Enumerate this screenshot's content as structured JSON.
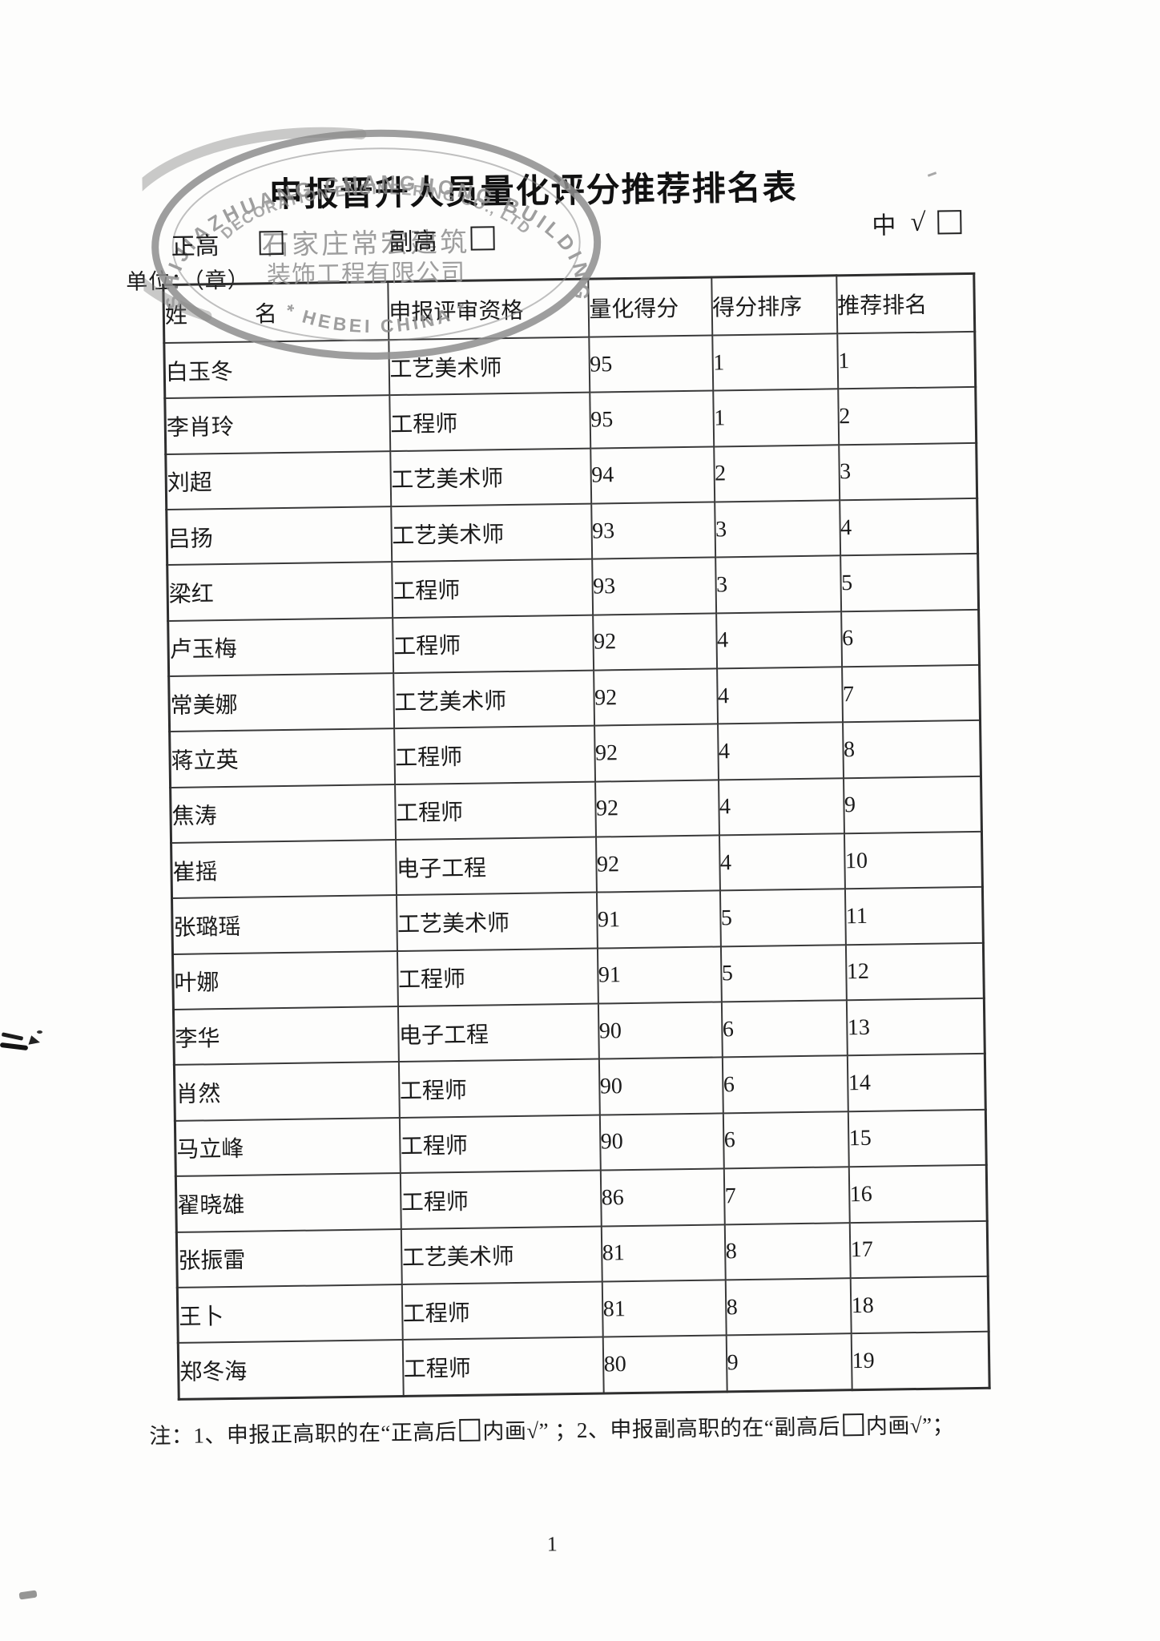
{
  "title": "申报晋升人员量化评分推荐排名表",
  "grade_options": [
    {
      "label": "正高",
      "checked": false
    },
    {
      "label": "副高",
      "checked": false
    },
    {
      "label": "中",
      "checked": true,
      "check_glyph": "√"
    }
  ],
  "unit_label": "单位：（章）",
  "stamp": {
    "color": "#8e8e8e",
    "arc_outer": "SHIJIAZHUANG CHANGHONG BUILDING",
    "arc_inner": "DECORATION ENGINEERING CO., LTD",
    "arc_bottom": "* HEBEI CHINA *",
    "center_line1": "石家庄常宏建筑",
    "center_line2": "装饰工程有限公司"
  },
  "table": {
    "headers": [
      "姓　　　名",
      "申报评审资格",
      "量化得分",
      "得分排序",
      "推荐排名"
    ],
    "rows": [
      {
        "name": "白玉冬",
        "qualification": "工艺美术师",
        "score": "95",
        "score_rank": "1",
        "rec_rank": "1"
      },
      {
        "name": "李肖玲",
        "qualification": "工程师",
        "score": "95",
        "score_rank": "1",
        "rec_rank": "2"
      },
      {
        "name": "刘超",
        "qualification": "工艺美术师",
        "score": "94",
        "score_rank": "2",
        "rec_rank": "3"
      },
      {
        "name": "吕扬",
        "qualification": "工艺美术师",
        "score": "93",
        "score_rank": "3",
        "rec_rank": "4"
      },
      {
        "name": "梁红",
        "qualification": "工程师",
        "score": "93",
        "score_rank": "3",
        "rec_rank": "5"
      },
      {
        "name": "卢玉梅",
        "qualification": "工程师",
        "score": "92",
        "score_rank": "4",
        "rec_rank": "6"
      },
      {
        "name": "常美娜",
        "qualification": "工艺美术师",
        "score": "92",
        "score_rank": "4",
        "rec_rank": "7"
      },
      {
        "name": "蒋立英",
        "qualification": "工程师",
        "score": "92",
        "score_rank": "4",
        "rec_rank": "8"
      },
      {
        "name": "焦涛",
        "qualification": "工程师",
        "score": "92",
        "score_rank": "4",
        "rec_rank": "9"
      },
      {
        "name": "崔摇",
        "qualification": "电子工程",
        "score": "92",
        "score_rank": "4",
        "rec_rank": "10"
      },
      {
        "name": "张璐瑶",
        "qualification": "工艺美术师",
        "score": "91",
        "score_rank": "5",
        "rec_rank": "11"
      },
      {
        "name": "叶娜",
        "qualification": "工程师",
        "score": "91",
        "score_rank": "5",
        "rec_rank": "12"
      },
      {
        "name": "李华",
        "qualification": "电子工程",
        "score": "90",
        "score_rank": "6",
        "rec_rank": "13"
      },
      {
        "name": "肖然",
        "qualification": "工程师",
        "score": "90",
        "score_rank": "6",
        "rec_rank": "14"
      },
      {
        "name": "马立峰",
        "qualification": "工程师",
        "score": "90",
        "score_rank": "6",
        "rec_rank": "15"
      },
      {
        "name": "翟晓雄",
        "qualification": "工程师",
        "score": "86",
        "score_rank": "7",
        "rec_rank": "16"
      },
      {
        "name": "张振雷",
        "qualification": "工艺美术师",
        "score": "81",
        "score_rank": "8",
        "rec_rank": "17"
      },
      {
        "name": "王卜",
        "qualification": "工程师",
        "score": "81",
        "score_rank": "8",
        "rec_rank": "18"
      },
      {
        "name": "郑冬海",
        "qualification": "工程师",
        "score": "80",
        "score_rank": "9",
        "rec_rank": "19"
      }
    ]
  },
  "note": {
    "seg1": "注：1、申报正高职的在“正高后",
    "seg2": "内画√” ；2、申报副高职的在“副高后",
    "seg3": "内画√”；"
  },
  "page_number": "1"
}
